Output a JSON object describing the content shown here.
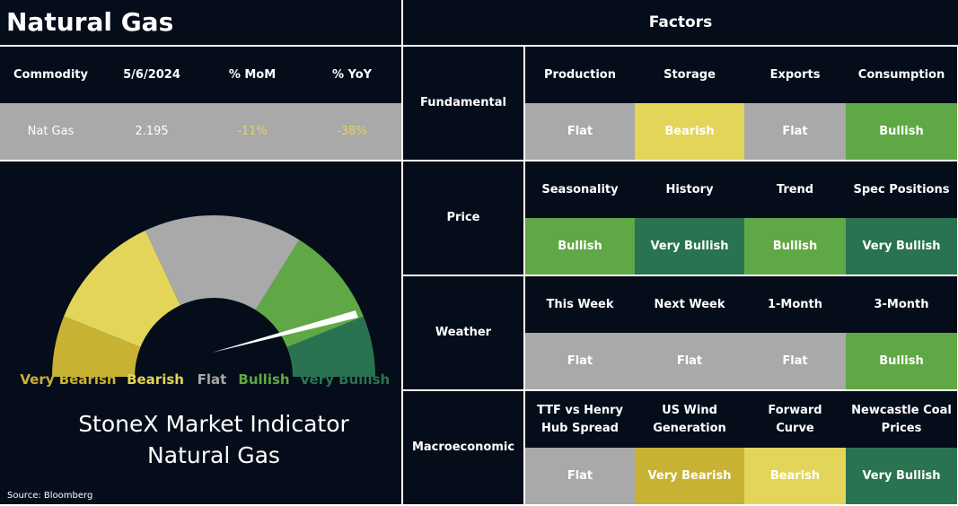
{
  "header": {
    "title": "Natural Gas",
    "factors_title": "Factors"
  },
  "table": {
    "columns": [
      "Commodity",
      "5/6/2024",
      "% MoM",
      "% YoY"
    ],
    "rows": [
      [
        "Nat Gas",
        "2.195",
        "-11%",
        "-38%"
      ]
    ]
  },
  "gauge": {
    "segments": [
      {
        "label": "Very Bearish",
        "color": "#c8b234"
      },
      {
        "label": "Bearish",
        "color": "#e2d55a"
      },
      {
        "label": "Flat",
        "color": "#a8a9a8"
      },
      {
        "label": "Bullish",
        "color": "#5fa845"
      },
      {
        "label": "Very Bullish",
        "color": "#2a7350"
      }
    ],
    "title": [
      "StoneX Market Indicator",
      "Natural Gas"
    ]
  },
  "source": "Source: Bloomberg",
  "factors": [
    {
      "category": "Fundamental",
      "items": [
        {
          "name": "Production",
          "signal": "Flat",
          "color": "#a8a9a8"
        },
        {
          "name": "Storage",
          "signal": "Bearish",
          "color": "#e2d55a"
        },
        {
          "name": "Exports",
          "signal": "Flat",
          "color": "#a8a9a8"
        },
        {
          "name": "Consumption",
          "signal": "Bullish",
          "color": "#5fa845"
        }
      ]
    },
    {
      "category": "Price",
      "items": [
        {
          "name": "Seasonality",
          "signal": "Bullish",
          "color": "#5fa845"
        },
        {
          "name": "History",
          "signal": "Very Bullish",
          "color": "#2a7350"
        },
        {
          "name": "Trend",
          "signal": "Bullish",
          "color": "#5fa845"
        },
        {
          "name": "Spec Positions",
          "signal": "Very Bullish",
          "color": "#2a7350"
        }
      ]
    },
    {
      "category": "Weather",
      "items": [
        {
          "name": "This Week",
          "signal": "Flat",
          "color": "#a8a9a8"
        },
        {
          "name": "Next Week",
          "signal": "Flat",
          "color": "#a8a9a8"
        },
        {
          "name": "1-Month",
          "signal": "Flat",
          "color": "#a8a9a8"
        },
        {
          "name": "3-Month",
          "signal": "Bullish",
          "color": "#5fa845"
        }
      ]
    },
    {
      "category": "Macroeconomic",
      "items": [
        {
          "name": "TTF vs Henry Hub Spread",
          "signal": "Flat",
          "color": "#a8a9a8"
        },
        {
          "name": "US Wind Generation",
          "signal": "Very Bearish",
          "color": "#c8b234"
        },
        {
          "name": "Forward Curve",
          "signal": "Bearish",
          "color": "#e2d55a"
        },
        {
          "name": "Newcastle Coal Prices",
          "signal": "Very Bullish",
          "color": "#2a7350"
        }
      ]
    }
  ]
}
